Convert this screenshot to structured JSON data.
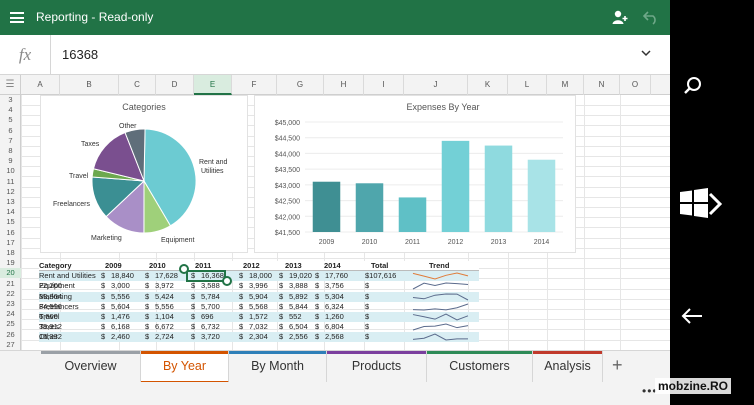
{
  "app": {
    "title": "Reporting - Read-only",
    "formula_value": "16368",
    "fx_label": "fx",
    "accent": "#217346"
  },
  "grid": {
    "columns": [
      "A",
      "B",
      "C",
      "D",
      "E",
      "F",
      "G",
      "H",
      "I",
      "J",
      "K",
      "L",
      "M",
      "N",
      "O"
    ],
    "selected_column": "E",
    "rows": [
      "3",
      "4",
      "5",
      "6",
      "7",
      "8",
      "9",
      "10",
      "11",
      "12",
      "13",
      "14",
      "15",
      "16",
      "17",
      "18",
      "19",
      "20",
      "21",
      "22",
      "23",
      "24",
      "25",
      "26",
      "27"
    ],
    "selected_row": "20"
  },
  "pie_chart": {
    "title": "Categories",
    "labels": [
      "Other",
      "Taxes",
      "Travel",
      "Freelancers",
      "Marketing",
      "Equipment",
      "Rent and Utilities"
    ]
  },
  "chart_data": {
    "type": "bar",
    "title": "Expenses By Year",
    "categories": [
      "2009",
      "2010",
      "2011",
      "2012",
      "2013",
      "2014"
    ],
    "values": [
      43100,
      43050,
      42600,
      44400,
      44250,
      43800
    ],
    "ylim": [
      41500,
      45000
    ],
    "yticks": [
      "$45,000",
      "$44,500",
      "$44,000",
      "$43,500",
      "$43,000",
      "$42,500",
      "$42,000",
      "$41,500"
    ],
    "colors": [
      "#3f8f93",
      "#4fa6ac",
      "#5fc0c6",
      "#73d0d6",
      "#8fdadf",
      "#a8e3e7"
    ]
  },
  "table": {
    "headers": [
      "Category",
      "2009",
      "2010",
      "2011",
      "2012",
      "2013",
      "2014",
      "Total",
      "Trend"
    ],
    "rows": [
      [
        "Rent and Utilities",
        "$",
        "18,840",
        "$",
        "17,628",
        "$",
        "16,368",
        "$",
        "18,000",
        "$",
        "19,020",
        "$",
        "17,760",
        "$107,616"
      ],
      [
        "Equipment",
        "$",
        "3,000",
        "$",
        "3,972",
        "$",
        "3,588",
        "$",
        "3,996",
        "$",
        "3,888",
        "$",
        "3,756",
        "$",
        "22,200"
      ],
      [
        "Marketing",
        "$",
        "5,556",
        "$",
        "5,424",
        "$",
        "5,784",
        "$",
        "5,904",
        "$",
        "5,892",
        "$",
        "5,304",
        "$",
        "33,864"
      ],
      [
        "Freelancers",
        "$",
        "5,604",
        "$",
        "5,556",
        "$",
        "5,700",
        "$",
        "5,568",
        "$",
        "5,844",
        "$",
        "6,324",
        "$",
        "34,596"
      ],
      [
        "Travel",
        "$",
        "1,476",
        "$",
        "1,104",
        "$",
        "696",
        "$",
        "1,572",
        "$",
        "552",
        "$",
        "1,260",
        "$",
        "6,660"
      ],
      [
        "Taxes",
        "$",
        "6,168",
        "$",
        "6,672",
        "$",
        "6,732",
        "$",
        "7,032",
        "$",
        "6,504",
        "$",
        "6,804",
        "$",
        "39,912"
      ],
      [
        "Other",
        "$",
        "2,460",
        "$",
        "2,724",
        "$",
        "3,720",
        "$",
        "2,304",
        "$",
        "2,556",
        "$",
        "2,568",
        "$",
        "16,332"
      ]
    ]
  },
  "tabs": [
    {
      "label": "Overview",
      "color": "#9aa0a6"
    },
    {
      "label": "By Year",
      "color": "#d35400"
    },
    {
      "label": "By Month",
      "color": "#2e7fb8"
    },
    {
      "label": "Products",
      "color": "#7b3f9e"
    },
    {
      "label": "Customers",
      "color": "#2e8b57"
    },
    {
      "label": "Analysis",
      "color": "#c0392b"
    }
  ],
  "add_tab_label": "+",
  "more_label": "•••",
  "watermark": "mobzine.RO"
}
